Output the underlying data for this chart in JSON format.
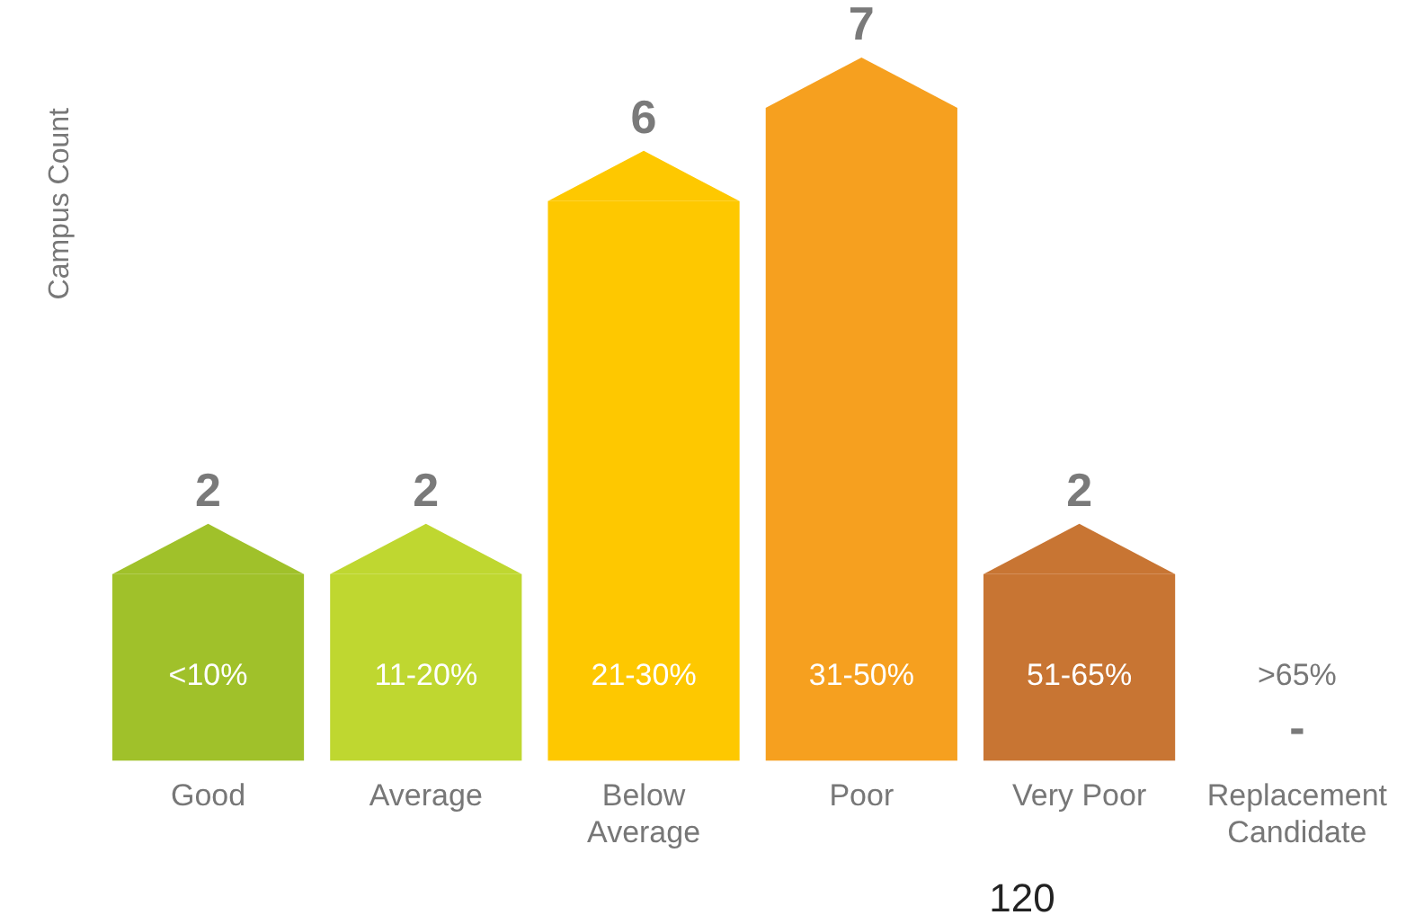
{
  "chart_data": {
    "type": "bar",
    "ylabel": "Campus Count",
    "categories": [
      "Good",
      "Average",
      "Below Average",
      "Poor",
      "Very Poor",
      "Replacement Candidate"
    ],
    "values": [
      2,
      2,
      6,
      7,
      2,
      0
    ],
    "colors": [
      "#a0c12a",
      "#bfd730",
      "#fec800",
      "#f6a01f",
      "#c87533",
      "#a91b0d"
    ],
    "value_labels": [
      "2",
      "2",
      "6",
      "7",
      "2",
      "-"
    ],
    "tick_labels": "x",
    "grid": false,
    "legend": false,
    "annotations": [
      "<10%",
      "11-20%",
      "21-30%",
      "31-50%",
      "51-65%",
      ">65%",
      "120"
    ]
  }
}
